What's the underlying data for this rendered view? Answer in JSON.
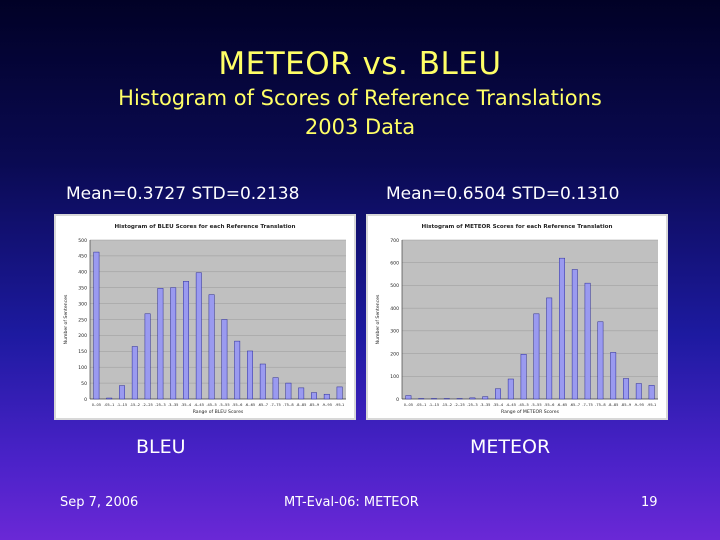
{
  "slide": {
    "title": "METEOR vs. BLEU",
    "subtitle_line1": "Histogram of Scores of Reference Translations",
    "subtitle_line2": "2003 Data",
    "bleu_stats": "Mean=0.3727 STD=0.2138",
    "meteor_stats": "Mean=0.6504 STD=0.1310",
    "bleu_caption": "BLEU",
    "meteor_caption": "METEOR",
    "footer_date": "Sep 7, 2006",
    "footer_center": "MT-Eval-06: METEOR",
    "footer_page": "19"
  },
  "chart_data": [
    {
      "type": "bar",
      "title": "Histogram of BLEU Scores for each Reference Translation",
      "xlabel": "Range of BLEU Scores",
      "ylabel": "Number of Sentences",
      "ylim": [
        0,
        500
      ],
      "yticks": [
        0,
        50,
        100,
        150,
        200,
        250,
        300,
        350,
        400,
        450,
        500
      ],
      "categories": [
        "0-.05",
        ".05-.1",
        ".1-.15",
        ".15-.2",
        ".2-.25",
        ".25-.3",
        ".3-.35",
        ".35-.4",
        ".4-.45",
        ".45-.5",
        ".5-.55",
        ".55-.6",
        ".6-.65",
        ".65-.7",
        ".7-.75",
        ".75-.8",
        ".8-.85",
        ".85-.9",
        ".9-.95",
        ".95-1"
      ],
      "values": [
        462,
        3,
        42,
        165,
        268,
        348,
        350,
        370,
        397,
        328,
        250,
        182,
        151,
        110,
        67,
        50,
        35,
        20,
        15,
        38
      ],
      "bar_color": "#9a9af0",
      "grid": true
    },
    {
      "type": "bar",
      "title": "Histogram of METEOR Scores for each Reference Translation",
      "xlabel": "Range of METEOR Scores",
      "ylabel": "Number of Sentences",
      "ylim": [
        0,
        700
      ],
      "yticks": [
        0,
        100,
        200,
        300,
        400,
        500,
        600,
        700
      ],
      "categories": [
        "0-.05",
        ".05-.1",
        ".1-.15",
        ".15-.2",
        ".2-.25",
        ".25-.3",
        ".3-.35",
        ".35-.4",
        ".4-.45",
        ".45-.5",
        ".5-.55",
        ".55-.6",
        ".6-.65",
        ".65-.7",
        ".7-.75",
        ".75-.8",
        ".8-.85",
        ".85-.9",
        ".9-.95",
        ".95-1"
      ],
      "values": [
        15,
        2,
        2,
        2,
        2,
        5,
        10,
        45,
        88,
        197,
        375,
        445,
        620,
        570,
        510,
        340,
        205,
        90,
        68,
        60
      ],
      "bar_color": "#9a9af0",
      "grid": true
    }
  ]
}
